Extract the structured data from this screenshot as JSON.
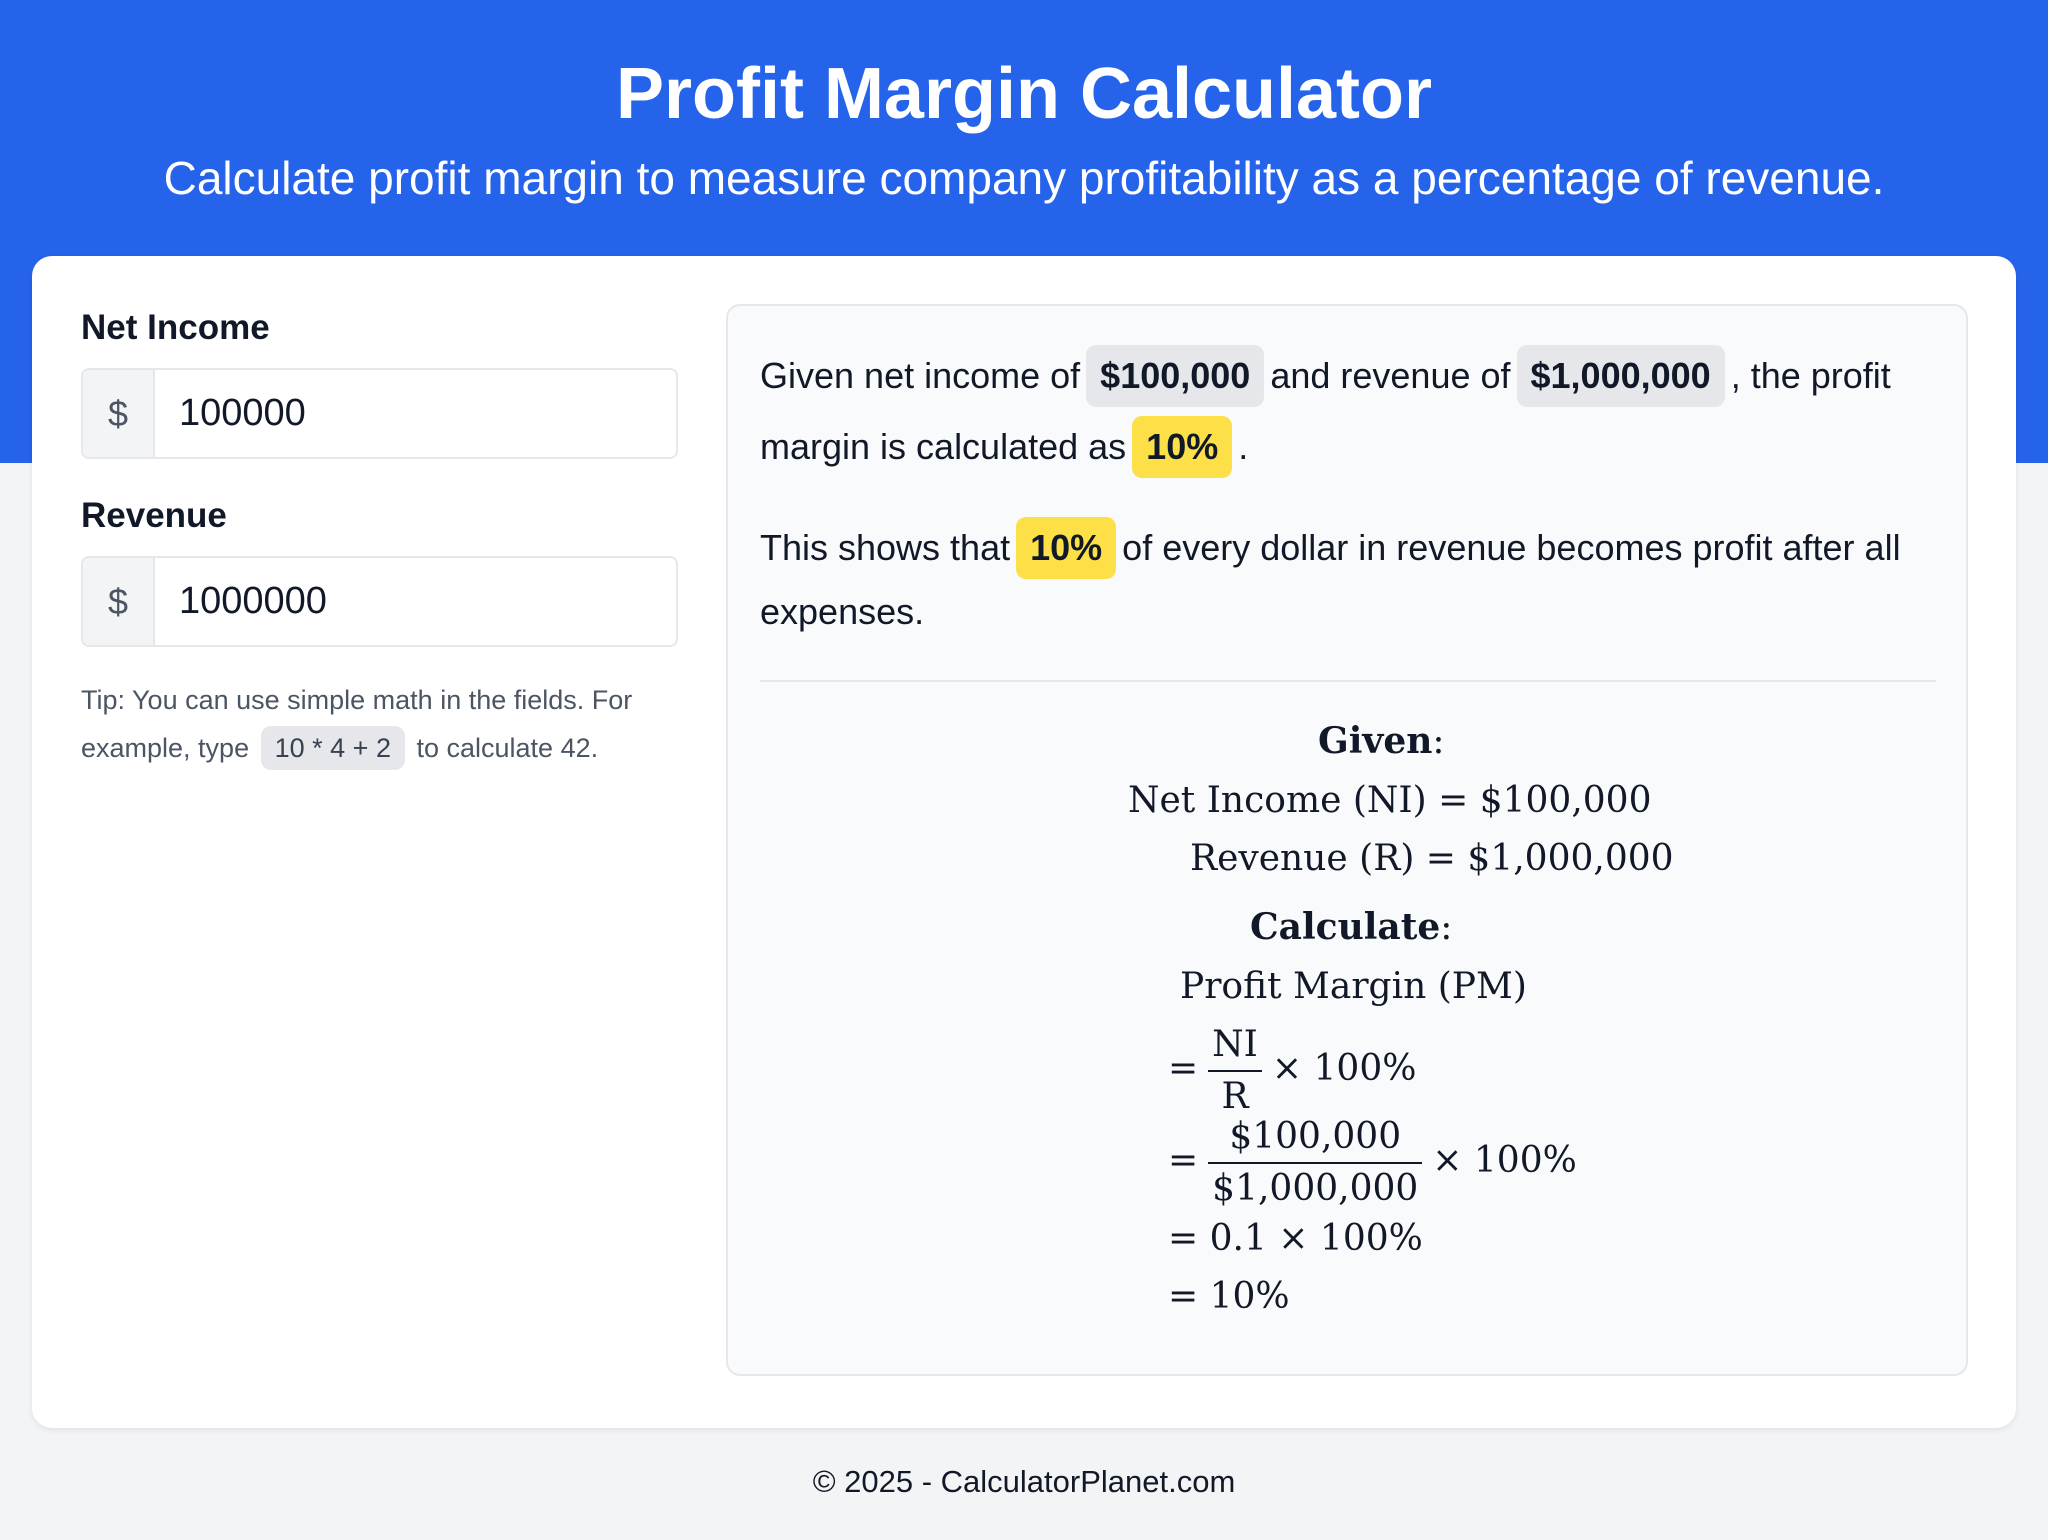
{
  "header": {
    "title": "Profit Margin Calculator",
    "subtitle": "Calculate profit margin to measure company profitability as a percentage of revenue."
  },
  "form": {
    "net_income": {
      "label": "Net Income",
      "prefix": "$",
      "value": "100000"
    },
    "revenue": {
      "label": "Revenue",
      "prefix": "$",
      "value": "1000000"
    },
    "tip": {
      "before": "Tip: You can use simple math in the fields. For example, type",
      "code": "10 * 4 + 2",
      "after": "to calculate 42."
    }
  },
  "result": {
    "s1": {
      "p1": "Given net income of",
      "income": "$100,000",
      "p2": "and revenue of",
      "revenue": "$1,000,000",
      "p3": ", the profit margin is calculated as",
      "margin": "10%",
      "p4": "."
    },
    "s2": {
      "p1": "This shows that",
      "margin": "10%",
      "p2": "of every dollar in revenue becomes profit after all expenses."
    }
  },
  "math": {
    "given_label": "Given",
    "line1": "Net Income (NI) = $100,000",
    "line2": "Revenue (R) = $1,000,000",
    "calculate_label": "Calculate",
    "pm_label": "Profit Margin (PM)",
    "eq": "=",
    "times": "× 100%",
    "f1_num": "NI",
    "f1_den": "R",
    "f2_num": "$100,000",
    "f2_den": "$1,000,000",
    "step3": "= 0.1 × 100%",
    "step4": "= 10%"
  },
  "footer": {
    "text": "© 2025 - CalculatorPlanet.com"
  }
}
